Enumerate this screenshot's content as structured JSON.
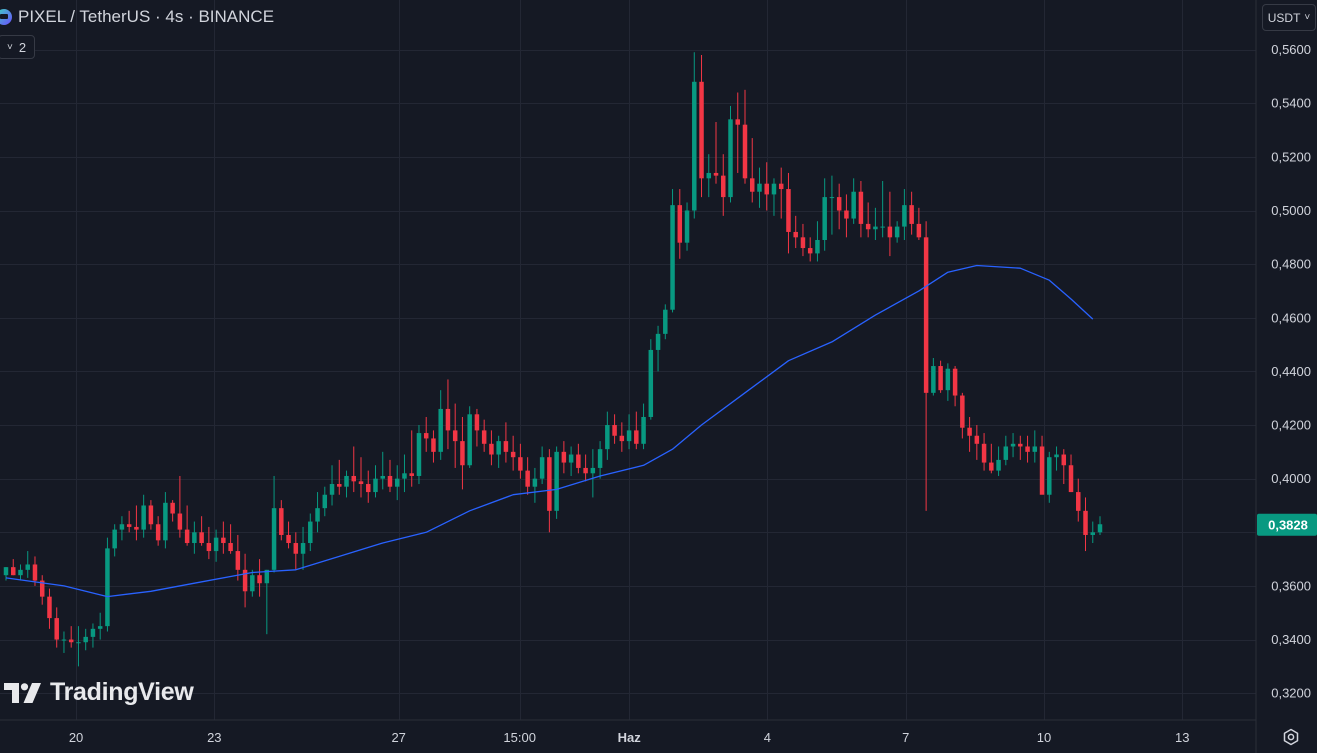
{
  "header": {
    "title": "PIXEL / TetherUS · 4s · BINANCE",
    "logo_icon": "pixel-coin-icon"
  },
  "indicator_toggle": {
    "label": "2",
    "icon": "chevron-down-icon"
  },
  "currency": {
    "label": "USDT",
    "icon": "chevron-down-icon"
  },
  "watermark": {
    "text": "TradingView",
    "icon": "tradingview-logo-icon"
  },
  "settings": {
    "icon": "gear-icon"
  },
  "colors": {
    "background": "#151924",
    "grid": "#232734",
    "up": "#089981",
    "down": "#f23645",
    "ma": "#2962ff",
    "text": "#d1d4dc",
    "axis_line": "#2a2e39"
  },
  "chart_data": {
    "type": "candlestick",
    "symbol": "PIXEL / TetherUS",
    "interval": "4s",
    "exchange": "BINANCE",
    "ylim": [
      0.31,
      0.5785
    ],
    "x_range_days": [
      -1.65,
      25.6
    ],
    "y_ticks": [
      {
        "value": 0.56,
        "label": "0,5600"
      },
      {
        "value": 0.54,
        "label": "0,5400"
      },
      {
        "value": 0.52,
        "label": "0,5200"
      },
      {
        "value": 0.5,
        "label": "0,5000"
      },
      {
        "value": 0.48,
        "label": "0,4800"
      },
      {
        "value": 0.46,
        "label": "0,4600"
      },
      {
        "value": 0.44,
        "label": "0,4400"
      },
      {
        "value": 0.42,
        "label": "0,4200"
      },
      {
        "value": 0.4,
        "label": "0,4000"
      },
      {
        "value": 0.36,
        "label": "0,3600"
      },
      {
        "value": 0.34,
        "label": "0,3400"
      },
      {
        "value": 0.32,
        "label": "0,3200"
      }
    ],
    "x_ticks": [
      {
        "day": 0,
        "label": "20"
      },
      {
        "day": 3,
        "label": "23"
      },
      {
        "day": 7,
        "label": "27"
      },
      {
        "day": 9.625,
        "label": "15:00"
      },
      {
        "day": 12,
        "label": "Haz"
      },
      {
        "day": 15,
        "label": "4"
      },
      {
        "day": 18,
        "label": "7"
      },
      {
        "day": 21,
        "label": "10"
      },
      {
        "day": 24,
        "label": "13"
      }
    ],
    "last_price": {
      "value": 0.3828,
      "label": "0,3828"
    },
    "candles_ohlc": [
      [
        0.364,
        0.367,
        0.362,
        0.367
      ],
      [
        0.367,
        0.37,
        0.364,
        0.364
      ],
      [
        0.364,
        0.368,
        0.362,
        0.366
      ],
      [
        0.366,
        0.373,
        0.363,
        0.368
      ],
      [
        0.368,
        0.371,
        0.36,
        0.362
      ],
      [
        0.362,
        0.364,
        0.353,
        0.356
      ],
      [
        0.356,
        0.359,
        0.344,
        0.348
      ],
      [
        0.348,
        0.352,
        0.337,
        0.34
      ],
      [
        0.34,
        0.343,
        0.335,
        0.34
      ],
      [
        0.34,
        0.345,
        0.337,
        0.339
      ],
      [
        0.339,
        0.345,
        0.33,
        0.339
      ],
      [
        0.339,
        0.344,
        0.336,
        0.341
      ],
      [
        0.341,
        0.346,
        0.337,
        0.344
      ],
      [
        0.344,
        0.35,
        0.34,
        0.345
      ],
      [
        0.345,
        0.378,
        0.343,
        0.374
      ],
      [
        0.374,
        0.383,
        0.371,
        0.381
      ],
      [
        0.381,
        0.386,
        0.377,
        0.383
      ],
      [
        0.383,
        0.388,
        0.38,
        0.382
      ],
      [
        0.382,
        0.39,
        0.377,
        0.381
      ],
      [
        0.381,
        0.394,
        0.378,
        0.39
      ],
      [
        0.39,
        0.392,
        0.381,
        0.383
      ],
      [
        0.383,
        0.386,
        0.375,
        0.377
      ],
      [
        0.377,
        0.395,
        0.374,
        0.391
      ],
      [
        0.391,
        0.392,
        0.384,
        0.387
      ],
      [
        0.387,
        0.401,
        0.378,
        0.381
      ],
      [
        0.381,
        0.39,
        0.375,
        0.376
      ],
      [
        0.376,
        0.384,
        0.372,
        0.38
      ],
      [
        0.38,
        0.386,
        0.375,
        0.376
      ],
      [
        0.376,
        0.382,
        0.37,
        0.373
      ],
      [
        0.373,
        0.381,
        0.369,
        0.378
      ],
      [
        0.378,
        0.384,
        0.372,
        0.376
      ],
      [
        0.376,
        0.383,
        0.372,
        0.373
      ],
      [
        0.373,
        0.379,
        0.362,
        0.366
      ],
      [
        0.366,
        0.372,
        0.352,
        0.358
      ],
      [
        0.358,
        0.366,
        0.356,
        0.364
      ],
      [
        0.364,
        0.37,
        0.356,
        0.361
      ],
      [
        0.361,
        0.366,
        0.342,
        0.366
      ],
      [
        0.366,
        0.401,
        0.365,
        0.389
      ],
      [
        0.389,
        0.392,
        0.377,
        0.379
      ],
      [
        0.379,
        0.384,
        0.374,
        0.376
      ],
      [
        0.376,
        0.38,
        0.366,
        0.372
      ],
      [
        0.372,
        0.382,
        0.366,
        0.376
      ],
      [
        0.376,
        0.387,
        0.373,
        0.384
      ],
      [
        0.384,
        0.395,
        0.38,
        0.389
      ],
      [
        0.389,
        0.397,
        0.386,
        0.394
      ],
      [
        0.394,
        0.405,
        0.39,
        0.398
      ],
      [
        0.398,
        0.407,
        0.394,
        0.397
      ],
      [
        0.397,
        0.403,
        0.393,
        0.401
      ],
      [
        0.401,
        0.412,
        0.395,
        0.399
      ],
      [
        0.399,
        0.408,
        0.393,
        0.398
      ],
      [
        0.398,
        0.403,
        0.391,
        0.395
      ],
      [
        0.395,
        0.405,
        0.393,
        0.4
      ],
      [
        0.4,
        0.41,
        0.396,
        0.401
      ],
      [
        0.401,
        0.407,
        0.395,
        0.397
      ],
      [
        0.397,
        0.405,
        0.392,
        0.4
      ],
      [
        0.4,
        0.409,
        0.395,
        0.402
      ],
      [
        0.402,
        0.418,
        0.397,
        0.401
      ],
      [
        0.401,
        0.42,
        0.398,
        0.417
      ],
      [
        0.417,
        0.423,
        0.41,
        0.415
      ],
      [
        0.415,
        0.418,
        0.406,
        0.41
      ],
      [
        0.41,
        0.433,
        0.407,
        0.426
      ],
      [
        0.426,
        0.437,
        0.411,
        0.418
      ],
      [
        0.418,
        0.428,
        0.404,
        0.414
      ],
      [
        0.414,
        0.423,
        0.396,
        0.405
      ],
      [
        0.405,
        0.427,
        0.404,
        0.424
      ],
      [
        0.424,
        0.426,
        0.412,
        0.418
      ],
      [
        0.418,
        0.422,
        0.41,
        0.413
      ],
      [
        0.413,
        0.418,
        0.405,
        0.409
      ],
      [
        0.409,
        0.416,
        0.404,
        0.414
      ],
      [
        0.414,
        0.421,
        0.406,
        0.41
      ],
      [
        0.41,
        0.416,
        0.403,
        0.408
      ],
      [
        0.408,
        0.413,
        0.4,
        0.403
      ],
      [
        0.403,
        0.408,
        0.394,
        0.397
      ],
      [
        0.397,
        0.404,
        0.391,
        0.4
      ],
      [
        0.4,
        0.412,
        0.398,
        0.408
      ],
      [
        0.408,
        0.411,
        0.38,
        0.388
      ],
      [
        0.388,
        0.412,
        0.385,
        0.41
      ],
      [
        0.41,
        0.414,
        0.402,
        0.406
      ],
      [
        0.406,
        0.412,
        0.401,
        0.409
      ],
      [
        0.409,
        0.413,
        0.402,
        0.404
      ],
      [
        0.404,
        0.409,
        0.399,
        0.402
      ],
      [
        0.402,
        0.411,
        0.393,
        0.404
      ],
      [
        0.404,
        0.414,
        0.4,
        0.411
      ],
      [
        0.411,
        0.425,
        0.407,
        0.42
      ],
      [
        0.42,
        0.424,
        0.413,
        0.416
      ],
      [
        0.416,
        0.421,
        0.41,
        0.414
      ],
      [
        0.414,
        0.424,
        0.411,
        0.418
      ],
      [
        0.418,
        0.425,
        0.411,
        0.413
      ],
      [
        0.413,
        0.428,
        0.411,
        0.423
      ],
      [
        0.423,
        0.452,
        0.422,
        0.448
      ],
      [
        0.448,
        0.457,
        0.44,
        0.454
      ],
      [
        0.454,
        0.465,
        0.452,
        0.463
      ],
      [
        0.463,
        0.508,
        0.462,
        0.502
      ],
      [
        0.502,
        0.508,
        0.482,
        0.488
      ],
      [
        0.488,
        0.503,
        0.485,
        0.5
      ],
      [
        0.5,
        0.559,
        0.497,
        0.548
      ],
      [
        0.548,
        0.558,
        0.505,
        0.512
      ],
      [
        0.512,
        0.521,
        0.505,
        0.514
      ],
      [
        0.514,
        0.533,
        0.51,
        0.513
      ],
      [
        0.513,
        0.521,
        0.498,
        0.505
      ],
      [
        0.505,
        0.539,
        0.503,
        0.534
      ],
      [
        0.534,
        0.544,
        0.514,
        0.532
      ],
      [
        0.532,
        0.545,
        0.51,
        0.512
      ],
      [
        0.512,
        0.527,
        0.503,
        0.507
      ],
      [
        0.507,
        0.516,
        0.501,
        0.51
      ],
      [
        0.51,
        0.518,
        0.5,
        0.506
      ],
      [
        0.506,
        0.512,
        0.498,
        0.51
      ],
      [
        0.51,
        0.516,
        0.497,
        0.508
      ],
      [
        0.508,
        0.514,
        0.484,
        0.492
      ],
      [
        0.492,
        0.498,
        0.486,
        0.49
      ],
      [
        0.49,
        0.495,
        0.483,
        0.486
      ],
      [
        0.486,
        0.49,
        0.481,
        0.484
      ],
      [
        0.484,
        0.496,
        0.481,
        0.489
      ],
      [
        0.489,
        0.512,
        0.485,
        0.505
      ],
      [
        0.505,
        0.513,
        0.491,
        0.505
      ],
      [
        0.505,
        0.51,
        0.493,
        0.5
      ],
      [
        0.5,
        0.506,
        0.49,
        0.497
      ],
      [
        0.497,
        0.512,
        0.495,
        0.507
      ],
      [
        0.507,
        0.511,
        0.49,
        0.495
      ],
      [
        0.495,
        0.503,
        0.49,
        0.493
      ],
      [
        0.493,
        0.501,
        0.489,
        0.494
      ],
      [
        0.494,
        0.511,
        0.49,
        0.494
      ],
      [
        0.494,
        0.507,
        0.483,
        0.49
      ],
      [
        0.49,
        0.496,
        0.488,
        0.494
      ],
      [
        0.494,
        0.508,
        0.489,
        0.502
      ],
      [
        0.502,
        0.507,
        0.491,
        0.495
      ],
      [
        0.495,
        0.501,
        0.489,
        0.49
      ],
      [
        0.49,
        0.496,
        0.388,
        0.432
      ],
      [
        0.432,
        0.445,
        0.431,
        0.442
      ],
      [
        0.442,
        0.444,
        0.432,
        0.433
      ],
      [
        0.433,
        0.443,
        0.429,
        0.441
      ],
      [
        0.441,
        0.442,
        0.427,
        0.431
      ],
      [
        0.431,
        0.432,
        0.415,
        0.419
      ],
      [
        0.419,
        0.423,
        0.41,
        0.416
      ],
      [
        0.416,
        0.42,
        0.407,
        0.413
      ],
      [
        0.413,
        0.417,
        0.403,
        0.406
      ],
      [
        0.406,
        0.413,
        0.402,
        0.403
      ],
      [
        0.403,
        0.412,
        0.401,
        0.407
      ],
      [
        0.407,
        0.416,
        0.405,
        0.412
      ],
      [
        0.412,
        0.417,
        0.408,
        0.413
      ],
      [
        0.413,
        0.416,
        0.407,
        0.412
      ],
      [
        0.412,
        0.416,
        0.406,
        0.41
      ],
      [
        0.41,
        0.418,
        0.406,
        0.412
      ],
      [
        0.412,
        0.416,
        0.395,
        0.394
      ],
      [
        0.394,
        0.41,
        0.391,
        0.408
      ],
      [
        0.408,
        0.412,
        0.403,
        0.409
      ],
      [
        0.409,
        0.411,
        0.398,
        0.405
      ],
      [
        0.405,
        0.409,
        0.395,
        0.395
      ],
      [
        0.395,
        0.4,
        0.384,
        0.388
      ],
      [
        0.388,
        0.393,
        0.373,
        0.379
      ],
      [
        0.379,
        0.384,
        0.376,
        0.38
      ],
      [
        0.38,
        0.386,
        0.379,
        0.383
      ]
    ],
    "ma": {
      "start_index": 0,
      "anchors": [
        [
          0,
          0.363
        ],
        [
          8,
          0.36
        ],
        [
          14,
          0.356
        ],
        [
          20,
          0.358
        ],
        [
          26,
          0.361
        ],
        [
          34,
          0.365
        ],
        [
          40,
          0.366
        ],
        [
          46,
          0.371
        ],
        [
          52,
          0.376
        ],
        [
          58,
          0.38
        ],
        [
          64,
          0.388
        ],
        [
          70,
          0.394
        ],
        [
          76,
          0.396
        ],
        [
          82,
          0.401
        ],
        [
          88,
          0.405
        ],
        [
          92,
          0.411
        ],
        [
          96,
          0.42
        ],
        [
          102,
          0.432
        ],
        [
          108,
          0.444
        ],
        [
          114,
          0.451
        ],
        [
          120,
          0.461
        ],
        [
          126,
          0.47
        ],
        [
          130,
          0.477
        ],
        [
          134,
          0.4795
        ],
        [
          140,
          0.4785
        ],
        [
          144,
          0.474
        ],
        [
          147,
          0.467
        ],
        [
          150,
          0.4595
        ]
      ]
    }
  }
}
